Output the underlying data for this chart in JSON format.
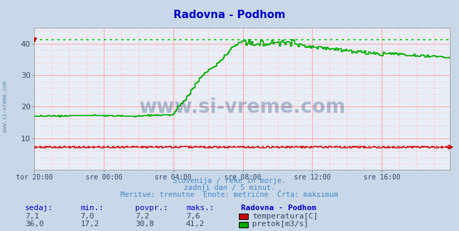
{
  "title": "Radovna - Podhom",
  "title_color": "#0000cc",
  "bg_color": "#c8d8e8",
  "plot_bg_color": "#e8eef8",
  "grid_major_color": "#ffaaaa",
  "grid_minor_color": "#ddcccc",
  "xlim": [
    0,
    287
  ],
  "ylim": [
    0,
    45
  ],
  "yticks": [
    10,
    20,
    30,
    40
  ],
  "xtick_labels": [
    "tor 20:00",
    "sre 00:00",
    "sre 04:00",
    "sre 08:00",
    "sre 12:00",
    "sre 16:00"
  ],
  "xtick_positions": [
    0,
    48,
    96,
    144,
    192,
    240
  ],
  "temp_color": "#cc0000",
  "flow_color": "#00aa00",
  "max_flow_dotted_color": "#00cc00",
  "max_temp_dotted_color": "#cc0000",
  "max_flow": 41.2,
  "max_temp": 7.6,
  "watermark": "www.si-vreme.com",
  "watermark_color": "#1a3a6e",
  "subtitle1": "Slovenija / reke in morje.",
  "subtitle2": "zadnji dan / 5 minut.",
  "subtitle3": "Meritve: trenutne  Enote: metrične  Črta: maksimum",
  "subtitle_color": "#4488cc",
  "table_header": [
    "sedaj:",
    "min.:",
    "povpr.:",
    "maks.:",
    "Radovna - Podhom"
  ],
  "table_color": "#0000cc",
  "temp_row": [
    "7,1",
    "7,0",
    "7,2",
    "7,6"
  ],
  "flow_row": [
    "36,0",
    "17,2",
    "30,8",
    "41,2"
  ],
  "label_temp": "temperatura[C]",
  "label_flow": "pretok[m3/s]",
  "left_label": "www.si-vreme.com",
  "left_label_color": "#6688aa"
}
